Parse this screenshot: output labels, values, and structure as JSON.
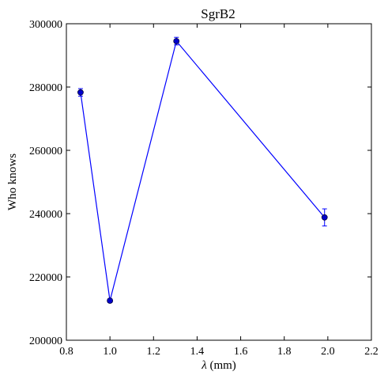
{
  "chart_data": {
    "type": "line",
    "title": "SgrB2",
    "xlabel_symbol": "λ",
    "xlabel_unit": " (mm)",
    "ylabel": "Who knows",
    "xlim": [
      0.8,
      2.2
    ],
    "ylim": [
      200000,
      300000
    ],
    "x_ticks": [
      "0.8",
      "1.0",
      "1.2",
      "1.4",
      "1.6",
      "1.8",
      "2.0",
      "2.2"
    ],
    "y_ticks": [
      "200000",
      "220000",
      "240000",
      "260000",
      "280000",
      "300000"
    ],
    "grid": false,
    "series": [
      {
        "color": "#0000ff",
        "marker_color": "#0000cc",
        "points": [
          {
            "x": 0.865,
            "y": 278300,
            "yerr": 1200
          },
          {
            "x": 1.0,
            "y": 212500,
            "yerr": 600
          },
          {
            "x": 1.305,
            "y": 294500,
            "yerr": 1200
          },
          {
            "x": 1.985,
            "y": 238800,
            "yerr": 2700
          }
        ]
      }
    ]
  }
}
